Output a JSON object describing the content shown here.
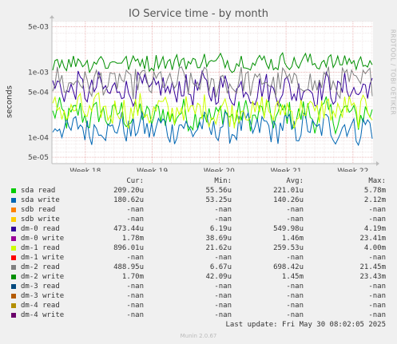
{
  "title": "IO Service time - by month",
  "side_label": "RRDTOOL / TOBI OETIKER",
  "footer": "Last update: Fri May 30 08:02:05 2025",
  "version": "Munin 2.0.67",
  "chart_data": {
    "type": "line",
    "title": "IO Service time - by month",
    "ylabel": "seconds",
    "yscale": "log",
    "ylim": [
      4e-05,
      0.006
    ],
    "yticks": [
      {
        "value": 5e-05,
        "label": "5e-05"
      },
      {
        "value": 0.0001,
        "label": "1e-04"
      },
      {
        "value": 0.0005,
        "label": "5e-04"
      },
      {
        "value": 0.001,
        "label": "1e-03"
      },
      {
        "value": 0.005,
        "label": "5e-03"
      }
    ],
    "xticks": [
      "Week 18",
      "Week 19",
      "Week 20",
      "Week 21",
      "Week 22"
    ],
    "grid": true,
    "series": [
      {
        "name": "sda read",
        "color": "#00CC00",
        "min": 5.556e-05,
        "avg": 0.00022101
      },
      {
        "name": "sda write",
        "color": "#0066B3",
        "min": 5.325e-05,
        "avg": 0.00014026
      },
      {
        "name": "dm-0 read",
        "color": "#330099",
        "min": 6.19e-06,
        "avg": 0.00054998
      },
      {
        "name": "dm-1 read",
        "color": "#CCFF00",
        "min": 2.162e-05,
        "avg": 0.00025953
      },
      {
        "name": "dm-2 read",
        "color": "#808080",
        "min": 6.67e-06,
        "avg": 0.00069842
      },
      {
        "name": "dm-2 write",
        "color": "#008F00",
        "min": 4.209e-05,
        "avg": 0.00145
      }
    ]
  },
  "legend": {
    "headers": {
      "cur": "Cur:",
      "min": "Min:",
      "avg": "Avg:",
      "max": "Max:"
    },
    "rows": [
      {
        "name": "sda read",
        "color": "#00CC00",
        "cur": "209.20u",
        "min": "55.56u",
        "avg": "221.01u",
        "max": "5.78m"
      },
      {
        "name": "sda write",
        "color": "#0066B3",
        "cur": "180.62u",
        "min": "53.25u",
        "avg": "140.26u",
        "max": "2.12m"
      },
      {
        "name": "sdb read",
        "color": "#FF8000",
        "cur": "-nan",
        "min": "-nan",
        "avg": "-nan",
        "max": "-nan"
      },
      {
        "name": "sdb write",
        "color": "#FFCC00",
        "cur": "-nan",
        "min": "-nan",
        "avg": "-nan",
        "max": "-nan"
      },
      {
        "name": "dm-0 read",
        "color": "#330099",
        "cur": "473.44u",
        "min": "6.19u",
        "avg": "549.98u",
        "max": "4.19m"
      },
      {
        "name": "dm-0 write",
        "color": "#990099",
        "cur": "1.78m",
        "min": "38.69u",
        "avg": "1.46m",
        "max": "23.41m"
      },
      {
        "name": "dm-1 read",
        "color": "#CCFF00",
        "cur": "896.01u",
        "min": "21.62u",
        "avg": "259.53u",
        "max": "4.00m"
      },
      {
        "name": "dm-1 write",
        "color": "#FF0000",
        "cur": "-nan",
        "min": "-nan",
        "avg": "-nan",
        "max": "-nan"
      },
      {
        "name": "dm-2 read",
        "color": "#808080",
        "cur": "488.95u",
        "min": "6.67u",
        "avg": "698.42u",
        "max": "21.45m"
      },
      {
        "name": "dm-2 write",
        "color": "#008F00",
        "cur": "1.70m",
        "min": "42.09u",
        "avg": "1.45m",
        "max": "23.43m"
      },
      {
        "name": "dm-3 read",
        "color": "#00487D",
        "cur": "-nan",
        "min": "-nan",
        "avg": "-nan",
        "max": "-nan"
      },
      {
        "name": "dm-3 write",
        "color": "#B35A00",
        "cur": "-nan",
        "min": "-nan",
        "avg": "-nan",
        "max": "-nan"
      },
      {
        "name": "dm-4 read",
        "color": "#B38F00",
        "cur": "-nan",
        "min": "-nan",
        "avg": "-nan",
        "max": "-nan"
      },
      {
        "name": "dm-4 write",
        "color": "#6B006B",
        "cur": "-nan",
        "min": "-nan",
        "avg": "-nan",
        "max": "-nan"
      }
    ]
  }
}
